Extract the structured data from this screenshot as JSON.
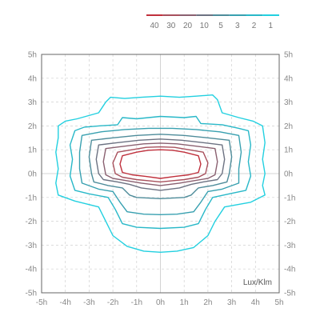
{
  "chart_data": {
    "type": "isolux-contour",
    "unit_label": "Lux/Klm",
    "x_ticks": [
      "-5h",
      "-4h",
      "-3h",
      "-2h",
      "-1h",
      "0h",
      "1h",
      "2h",
      "3h",
      "4h",
      "5h"
    ],
    "y_ticks": [
      "5h",
      "4h",
      "3h",
      "2h",
      "1h",
      "0h",
      "-1h",
      "-2h",
      "-3h",
      "-4h",
      "-5h"
    ],
    "xlim": [
      -5,
      5
    ],
    "ylim": [
      -5,
      5
    ],
    "grid": true,
    "legend_placement": "top-right",
    "legend": [
      {
        "label": "40",
        "color": "#c0303c"
      },
      {
        "label": "30",
        "color": "#a8505c"
      },
      {
        "label": "20",
        "color": "#8a6070"
      },
      {
        "label": "10",
        "color": "#6c7282"
      },
      {
        "label": "5",
        "color": "#4e8c9a"
      },
      {
        "label": "3",
        "color": "#38a0b0"
      },
      {
        "label": "2",
        "color": "#28b8c8"
      },
      {
        "label": "1",
        "color": "#22d0e0"
      }
    ],
    "contours": [
      {
        "level": "1",
        "color": "#22d0e0",
        "points": [
          [
            -4.3,
            2.0
          ],
          [
            -4.0,
            2.2
          ],
          [
            -3.5,
            2.3
          ],
          [
            -2.6,
            2.55
          ],
          [
            -2.3,
            3.0
          ],
          [
            -2.1,
            3.2
          ],
          [
            -1.5,
            3.15
          ],
          [
            -0.8,
            3.2
          ],
          [
            0.0,
            3.25
          ],
          [
            0.8,
            3.2
          ],
          [
            1.5,
            3.25
          ],
          [
            2.2,
            3.3
          ],
          [
            2.4,
            3.1
          ],
          [
            2.6,
            2.55
          ],
          [
            3.3,
            2.35
          ],
          [
            3.9,
            2.2
          ],
          [
            4.3,
            2.0
          ],
          [
            4.4,
            1.3
          ],
          [
            4.3,
            0.6
          ],
          [
            4.4,
            0.0
          ],
          [
            4.3,
            -0.5
          ],
          [
            4.4,
            -0.9
          ],
          [
            3.8,
            -1.2
          ],
          [
            2.7,
            -1.4
          ],
          [
            2.3,
            -2.0
          ],
          [
            2.0,
            -2.6
          ],
          [
            1.4,
            -3.1
          ],
          [
            0.7,
            -3.25
          ],
          [
            0.0,
            -3.3
          ],
          [
            -0.7,
            -3.25
          ],
          [
            -1.4,
            -3.05
          ],
          [
            -2.0,
            -2.6
          ],
          [
            -2.3,
            -2.0
          ],
          [
            -2.6,
            -1.4
          ],
          [
            -3.6,
            -1.15
          ],
          [
            -4.3,
            -0.9
          ],
          [
            -4.4,
            -0.4
          ],
          [
            -4.3,
            0.2
          ],
          [
            -4.4,
            0.9
          ],
          [
            -4.3,
            1.5
          ]
        ]
      },
      {
        "level": "2",
        "color": "#28b8c8",
        "points": [
          [
            -3.6,
            1.8
          ],
          [
            -3.2,
            1.95
          ],
          [
            -2.6,
            2.0
          ],
          [
            -1.8,
            2.05
          ],
          [
            -1.6,
            2.35
          ],
          [
            -1.0,
            2.3
          ],
          [
            0.0,
            2.4
          ],
          [
            1.0,
            2.35
          ],
          [
            1.5,
            2.4
          ],
          [
            1.7,
            2.1
          ],
          [
            2.6,
            2.05
          ],
          [
            3.3,
            1.9
          ],
          [
            3.7,
            1.8
          ],
          [
            3.8,
            1.2
          ],
          [
            3.7,
            0.5
          ],
          [
            3.8,
            -0.1
          ],
          [
            3.6,
            -0.7
          ],
          [
            2.9,
            -0.85
          ],
          [
            2.2,
            -1.0
          ],
          [
            1.9,
            -1.5
          ],
          [
            1.6,
            -2.1
          ],
          [
            1.0,
            -2.25
          ],
          [
            0.0,
            -2.3
          ],
          [
            -1.0,
            -2.25
          ],
          [
            -1.6,
            -2.1
          ],
          [
            -1.9,
            -1.5
          ],
          [
            -2.2,
            -1.0
          ],
          [
            -3.0,
            -0.85
          ],
          [
            -3.6,
            -0.7
          ],
          [
            -3.8,
            -0.1
          ],
          [
            -3.7,
            0.6
          ],
          [
            -3.8,
            1.2
          ]
        ]
      },
      {
        "level": "3",
        "color": "#38a0b0",
        "points": [
          [
            -3.3,
            1.6
          ],
          [
            -2.5,
            1.75
          ],
          [
            -1.5,
            1.85
          ],
          [
            -0.5,
            1.9
          ],
          [
            0.5,
            1.9
          ],
          [
            1.5,
            1.85
          ],
          [
            2.5,
            1.75
          ],
          [
            3.3,
            1.6
          ],
          [
            3.4,
            0.9
          ],
          [
            3.3,
            0.2
          ],
          [
            3.3,
            -0.4
          ],
          [
            2.6,
            -0.65
          ],
          [
            2.0,
            -0.75
          ],
          [
            1.7,
            -1.2
          ],
          [
            1.4,
            -1.6
          ],
          [
            0.7,
            -1.7
          ],
          [
            0.0,
            -1.72
          ],
          [
            -0.7,
            -1.7
          ],
          [
            -1.4,
            -1.6
          ],
          [
            -1.7,
            -1.2
          ],
          [
            -2.0,
            -0.75
          ],
          [
            -2.6,
            -0.65
          ],
          [
            -3.3,
            -0.4
          ],
          [
            -3.4,
            0.2
          ],
          [
            -3.4,
            0.9
          ]
        ]
      },
      {
        "level": "5",
        "color": "#4e8c9a",
        "points": [
          [
            -2.9,
            1.4
          ],
          [
            -2.0,
            1.5
          ],
          [
            -1.0,
            1.6
          ],
          [
            0.0,
            1.65
          ],
          [
            1.0,
            1.6
          ],
          [
            2.0,
            1.5
          ],
          [
            2.9,
            1.4
          ],
          [
            3.0,
            0.7
          ],
          [
            2.9,
            0.0
          ],
          [
            2.8,
            -0.35
          ],
          [
            2.2,
            -0.5
          ],
          [
            1.6,
            -0.6
          ],
          [
            1.3,
            -0.9
          ],
          [
            1.0,
            -1.0
          ],
          [
            0.0,
            -1.05
          ],
          [
            -1.0,
            -1.0
          ],
          [
            -1.3,
            -0.9
          ],
          [
            -1.6,
            -0.6
          ],
          [
            -2.2,
            -0.5
          ],
          [
            -2.8,
            -0.35
          ],
          [
            -2.9,
            0.0
          ],
          [
            -3.0,
            0.7
          ]
        ]
      },
      {
        "level": "10",
        "color": "#6c7282",
        "points": [
          [
            -2.6,
            1.2
          ],
          [
            -1.8,
            1.3
          ],
          [
            -0.9,
            1.4
          ],
          [
            0.0,
            1.45
          ],
          [
            0.9,
            1.4
          ],
          [
            1.8,
            1.3
          ],
          [
            2.6,
            1.2
          ],
          [
            2.7,
            0.6
          ],
          [
            2.6,
            0.0
          ],
          [
            2.4,
            -0.25
          ],
          [
            1.8,
            -0.35
          ],
          [
            1.3,
            -0.45
          ],
          [
            0.8,
            -0.6
          ],
          [
            0.0,
            -0.7
          ],
          [
            -0.8,
            -0.6
          ],
          [
            -1.3,
            -0.45
          ],
          [
            -1.8,
            -0.35
          ],
          [
            -2.4,
            -0.25
          ],
          [
            -2.6,
            0.0
          ],
          [
            -2.7,
            0.6
          ]
        ]
      },
      {
        "level": "20",
        "color": "#8a6070",
        "points": [
          [
            -2.3,
            1.05
          ],
          [
            -1.5,
            1.15
          ],
          [
            -0.7,
            1.25
          ],
          [
            0.0,
            1.28
          ],
          [
            0.7,
            1.25
          ],
          [
            1.5,
            1.15
          ],
          [
            2.3,
            1.05
          ],
          [
            2.4,
            0.5
          ],
          [
            2.3,
            -0.05
          ],
          [
            2.0,
            -0.2
          ],
          [
            1.4,
            -0.3
          ],
          [
            0.8,
            -0.4
          ],
          [
            0.0,
            -0.5
          ],
          [
            -0.8,
            -0.4
          ],
          [
            -1.4,
            -0.3
          ],
          [
            -2.0,
            -0.2
          ],
          [
            -2.3,
            -0.05
          ],
          [
            -2.4,
            0.5
          ]
        ]
      },
      {
        "level": "30",
        "color": "#a8505c",
        "points": [
          [
            -1.8,
            0.9
          ],
          [
            -1.2,
            1.0
          ],
          [
            -0.6,
            1.1
          ],
          [
            0.0,
            1.12
          ],
          [
            0.6,
            1.1
          ],
          [
            1.2,
            1.0
          ],
          [
            1.8,
            0.9
          ],
          [
            2.0,
            0.45
          ],
          [
            1.9,
            0.0
          ],
          [
            1.6,
            -0.15
          ],
          [
            1.0,
            -0.25
          ],
          [
            0.5,
            -0.3
          ],
          [
            0.0,
            -0.35
          ],
          [
            -0.5,
            -0.3
          ],
          [
            -1.0,
            -0.25
          ],
          [
            -1.6,
            -0.15
          ],
          [
            -1.9,
            0.0
          ],
          [
            -2.0,
            0.45
          ]
        ]
      },
      {
        "level": "40",
        "color": "#c0303c",
        "points": [
          [
            -1.6,
            0.75
          ],
          [
            -1.0,
            0.9
          ],
          [
            -0.5,
            0.98
          ],
          [
            0.0,
            1.0
          ],
          [
            0.5,
            0.98
          ],
          [
            1.0,
            0.9
          ],
          [
            1.6,
            0.75
          ],
          [
            1.7,
            0.4
          ],
          [
            1.6,
            0.05
          ],
          [
            1.2,
            -0.05
          ],
          [
            0.6,
            -0.12
          ],
          [
            0.0,
            -0.2
          ],
          [
            -0.6,
            -0.12
          ],
          [
            -1.2,
            -0.05
          ],
          [
            -1.6,
            0.05
          ],
          [
            -1.7,
            0.4
          ]
        ]
      }
    ]
  }
}
